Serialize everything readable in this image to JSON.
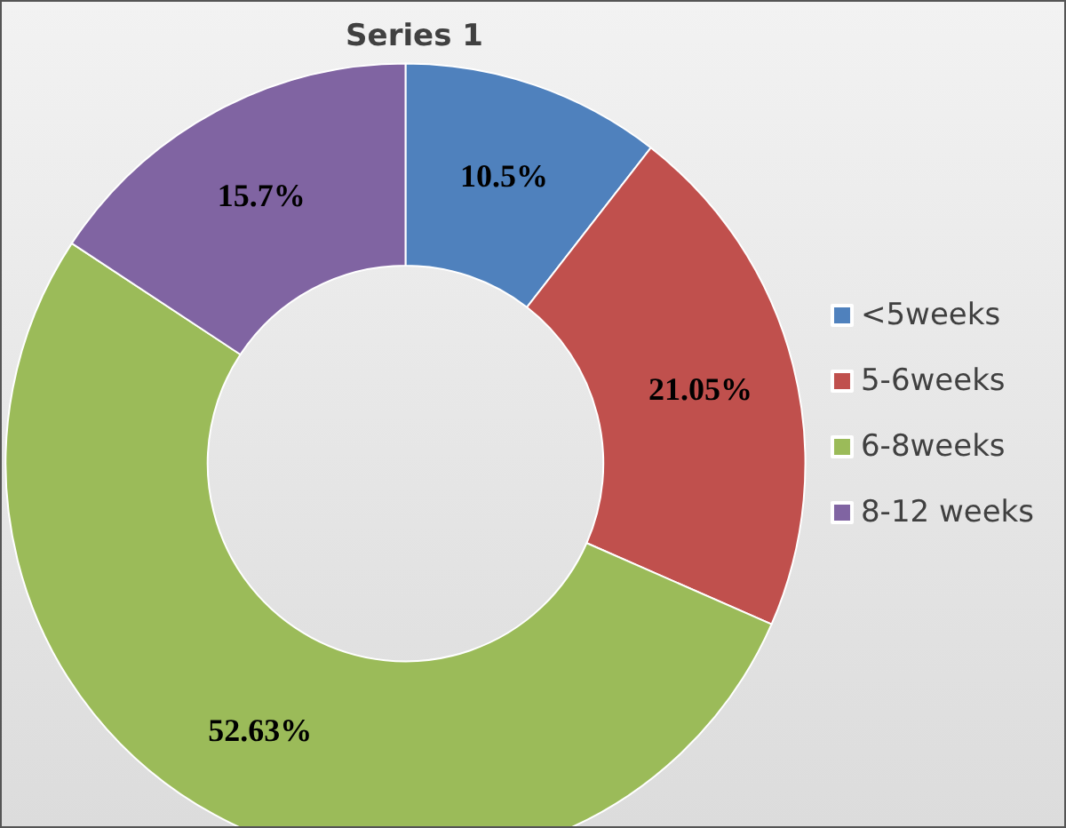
{
  "chart_data": {
    "type": "donut",
    "title": "Series 1",
    "categories": [
      "<5weeks",
      "5-6weeks",
      "6-8weeks",
      "8-12 weeks"
    ],
    "values": [
      10.5,
      21.05,
      52.63,
      15.7
    ],
    "value_labels": [
      "10.5%",
      "21.05%",
      "52.63%",
      "15.7%"
    ],
    "colors": [
      "#4f81bd",
      "#c0504d",
      "#9bbb59",
      "#8064a2"
    ],
    "legend": "right"
  }
}
